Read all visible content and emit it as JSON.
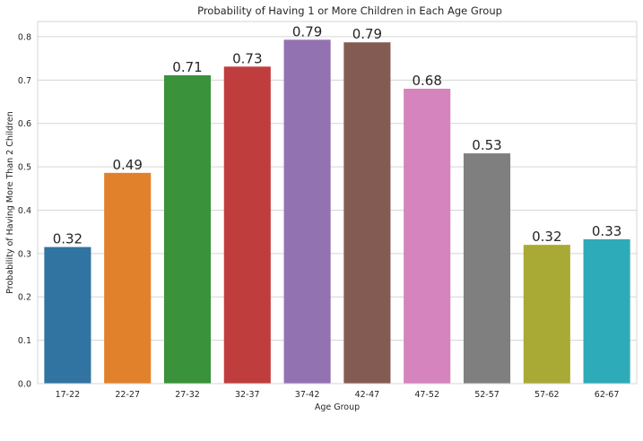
{
  "chart_data": {
    "type": "bar",
    "title": "Probability of Having 1 or More Children in Each Age Group",
    "xlabel": "Age Group",
    "ylabel": "Probability of Having More Than 2 Children",
    "ylim": [
      0,
      0.835
    ],
    "yticks": [
      "0.0",
      "0.1",
      "0.2",
      "0.3",
      "0.4",
      "0.5",
      "0.6",
      "0.7",
      "0.8"
    ],
    "grid": true,
    "categories": [
      "17-22",
      "22-27",
      "27-32",
      "32-37",
      "37-42",
      "42-47",
      "47-52",
      "52-57",
      "57-62",
      "62-67"
    ],
    "values": [
      0.315,
      0.486,
      0.711,
      0.731,
      0.793,
      0.787,
      0.68,
      0.531,
      0.32,
      0.333
    ],
    "data_labels": [
      "0.32",
      "0.49",
      "0.71",
      "0.73",
      "0.79",
      "0.79",
      "0.68",
      "0.53",
      "0.32",
      "0.33"
    ],
    "colors": [
      "#3274a1",
      "#e1812c",
      "#3a923a",
      "#c03d3e",
      "#9372b2",
      "#845b53",
      "#d684bd",
      "#7f7f7f",
      "#a9aa35",
      "#2eabb8"
    ]
  }
}
